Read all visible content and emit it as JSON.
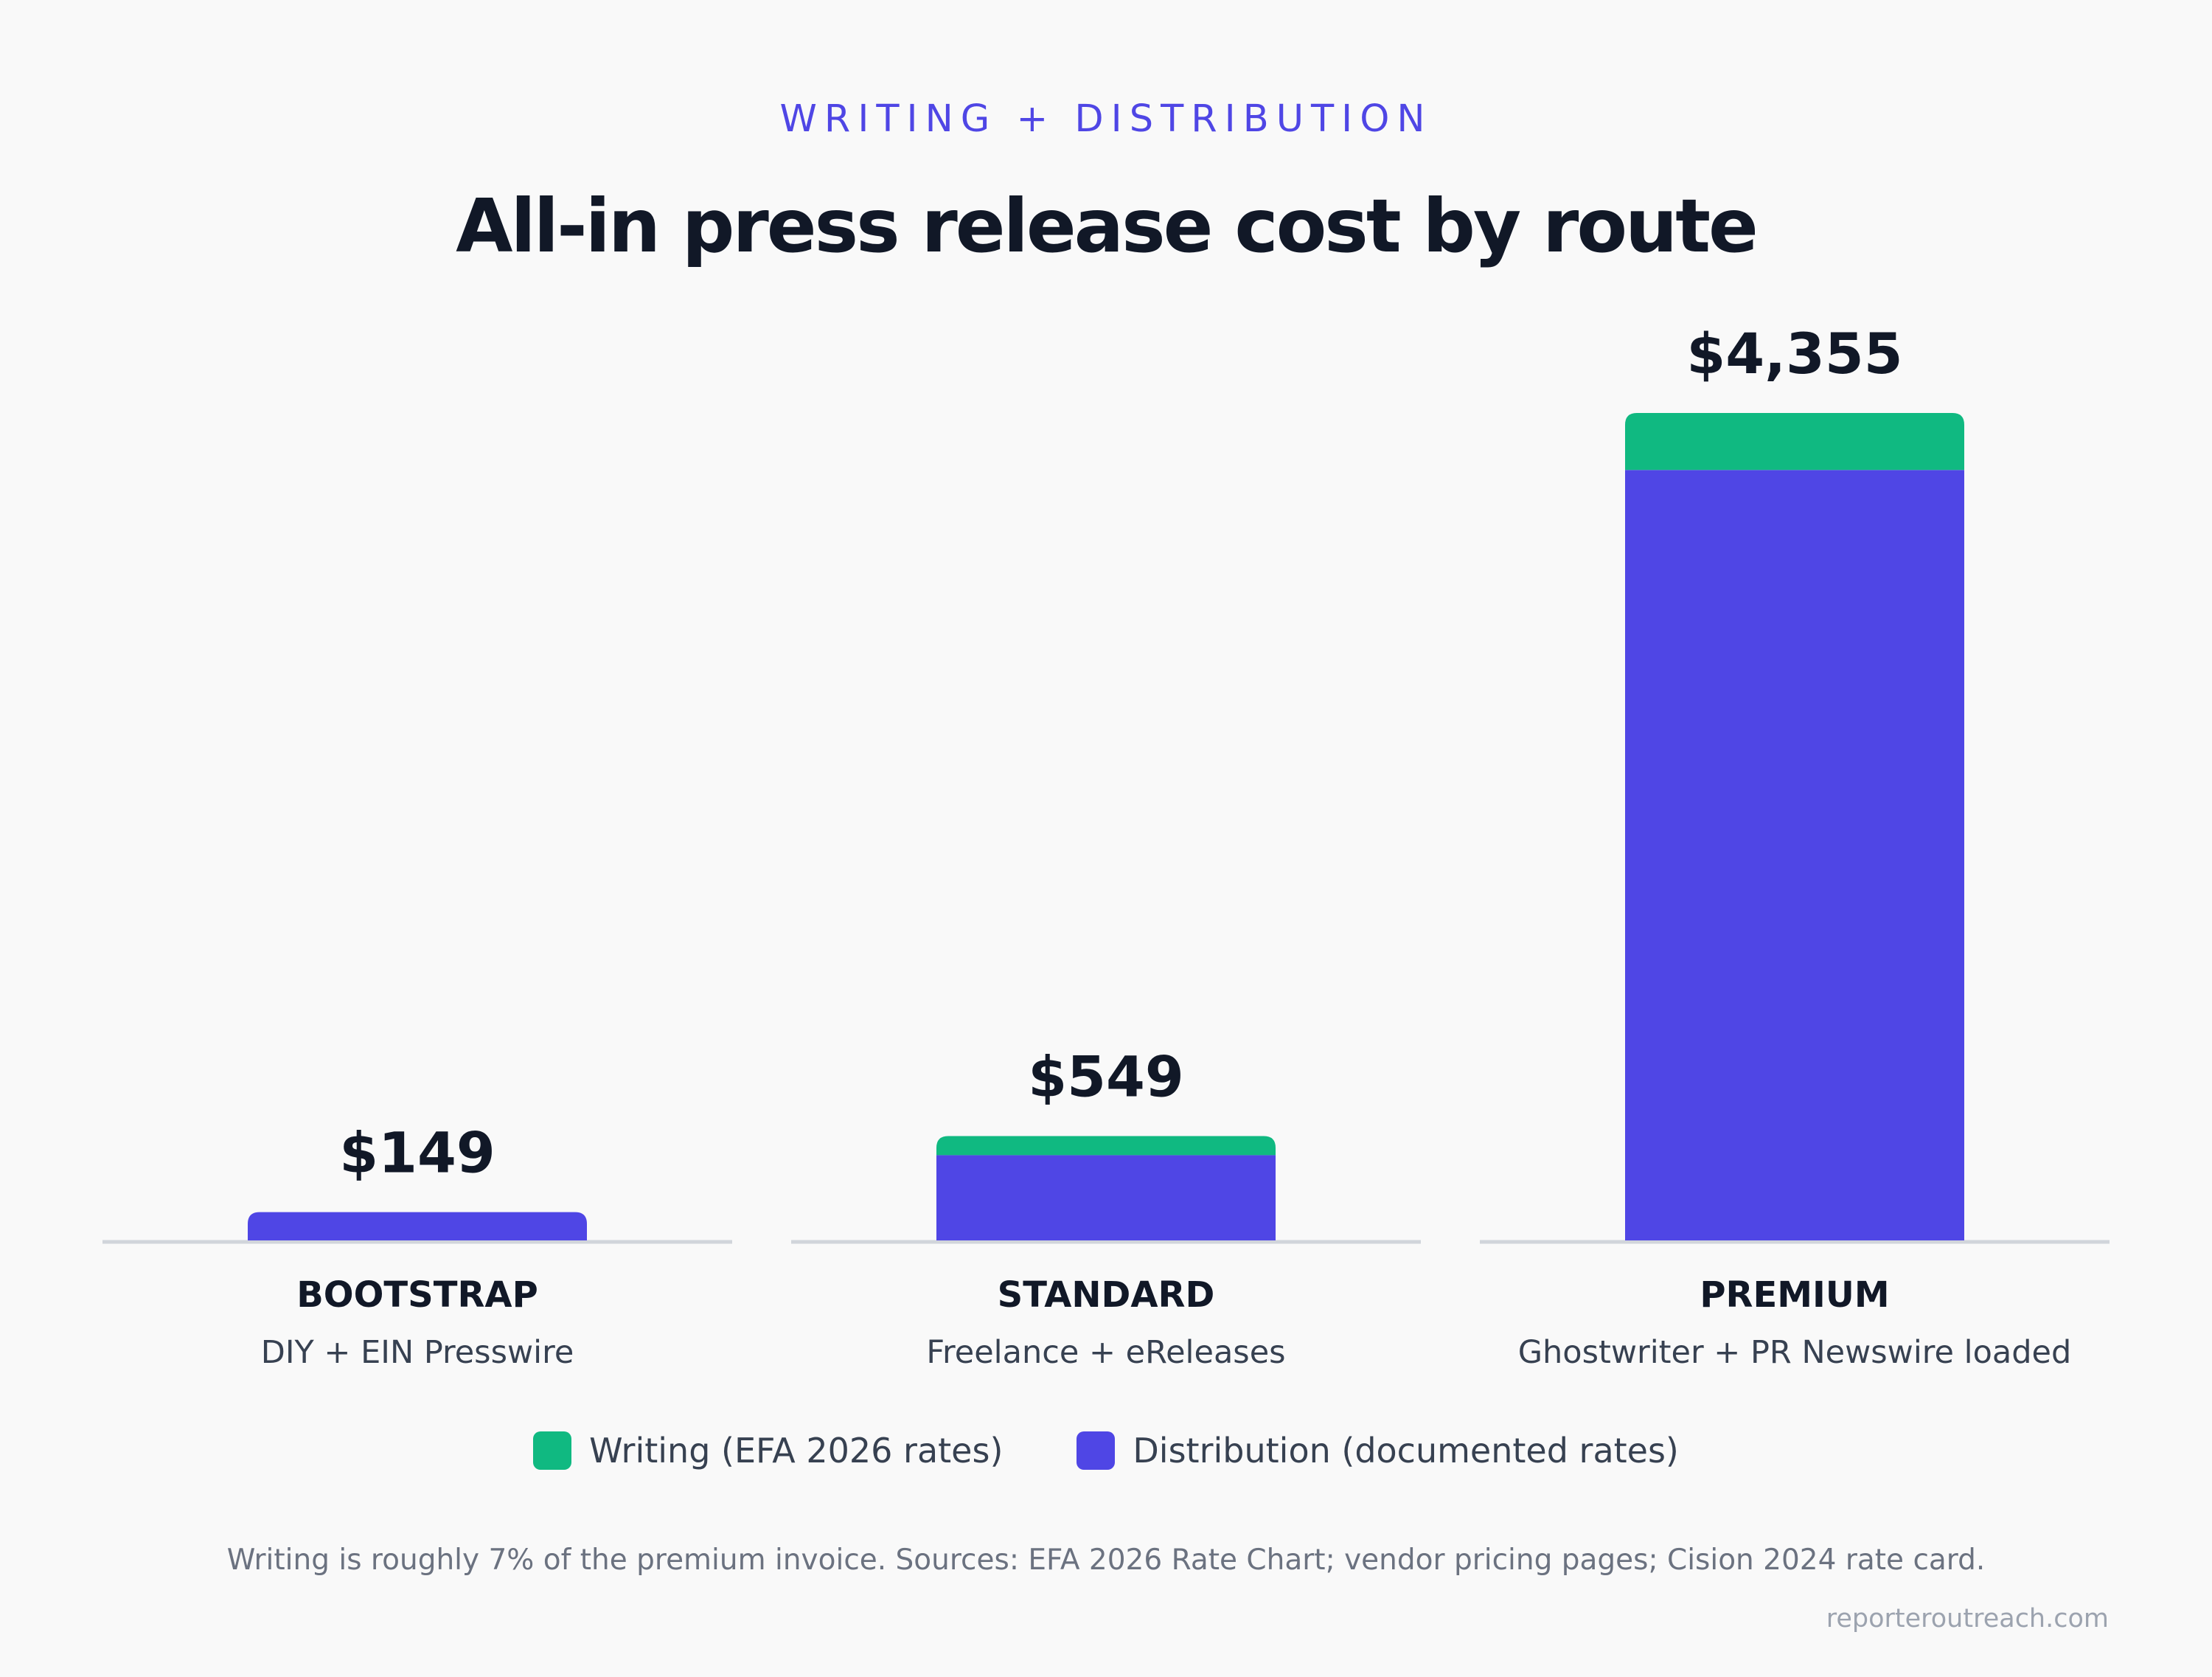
{
  "header": {
    "eyebrow": "WRITING + DISTRIBUTION",
    "title": "All-in press release cost by route"
  },
  "chart_data": {
    "type": "bar",
    "stacked": true,
    "categories": [
      "BOOTSTRAP",
      "STANDARD",
      "PREMIUM"
    ],
    "category_sublabels": [
      "DIY + EIN Presswire",
      "Freelance + eReleases",
      "Ghostwriter + PR Newswire loaded"
    ],
    "totals_labels": [
      "$149",
      "$549",
      "$4,355"
    ],
    "totals": [
      149,
      549,
      4355
    ],
    "series": [
      {
        "name": "Distribution (documented rates)",
        "values": [
          149,
          449,
          4055
        ],
        "color": "#4f46e5"
      },
      {
        "name": "Writing (EFA 2026 rates)",
        "values": [
          0,
          100,
          300
        ],
        "color": "#10b981"
      }
    ],
    "ylim": [
      0,
      4355
    ],
    "grid": false,
    "legend_position": "bottom"
  },
  "legend": {
    "items": [
      {
        "label": "Writing (EFA 2026 rates)",
        "color": "#10b981"
      },
      {
        "label": "Distribution (documented rates)",
        "color": "#4f46e5"
      }
    ]
  },
  "footnote": "Writing is roughly 7% of the premium invoice. Sources: EFA 2026 Rate Chart; vendor pricing pages; Cision 2024 rate card.",
  "credit": "reporteroutreach.com"
}
